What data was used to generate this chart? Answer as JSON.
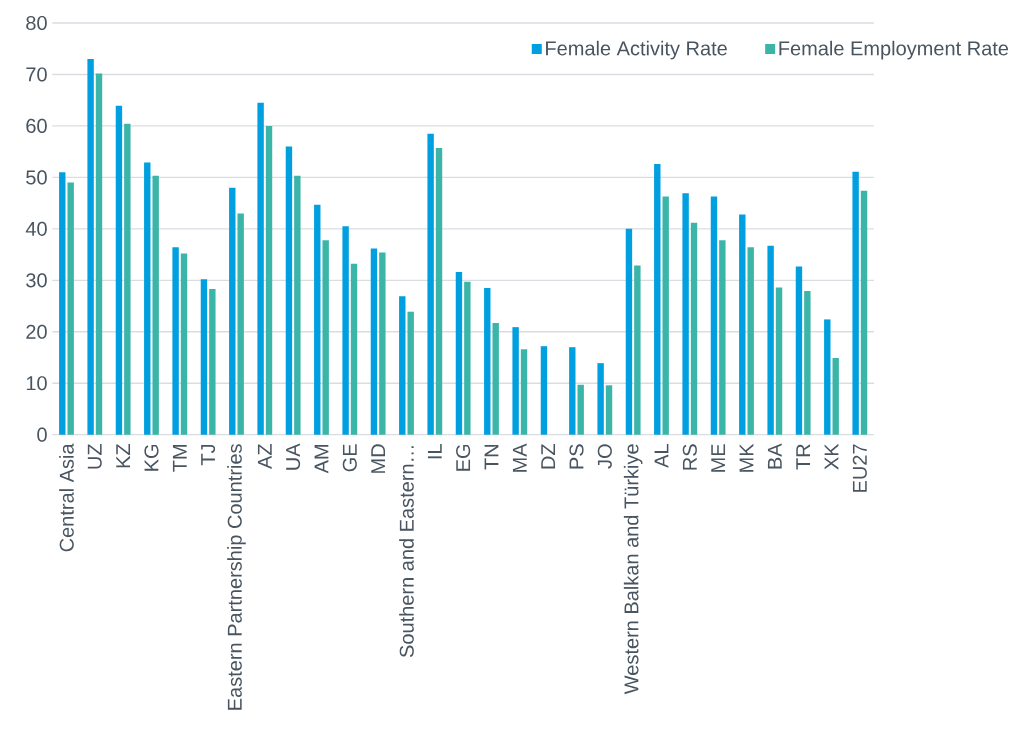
{
  "chart_data": {
    "type": "bar",
    "categories": [
      "Central Asia",
      "UZ",
      "KZ",
      "KG",
      "TM",
      "TJ",
      "Eastern Partnership Countries",
      "AZ",
      "UA",
      "AM",
      "GE",
      "MD",
      "Southern and Eastern…",
      "IL",
      "EG",
      "TN",
      "MA",
      "DZ",
      "PS",
      "JO",
      "Western Balkan and Türkiye",
      "AL",
      "RS",
      "ME",
      "MK",
      "BA",
      "TR",
      "XK",
      "EU27"
    ],
    "series": [
      {
        "name": "Female Activity Rate",
        "color": "#009fdf",
        "values": [
          51.0,
          73.0,
          63.9,
          52.9,
          36.4,
          30.2,
          48.0,
          64.5,
          56.0,
          44.7,
          40.5,
          36.2,
          26.9,
          58.5,
          31.6,
          28.5,
          20.9,
          17.2,
          17.0,
          13.9,
          40.0,
          52.6,
          46.9,
          46.3,
          42.8,
          36.7,
          32.7,
          22.4,
          51.1
        ]
      },
      {
        "name": "Female Employment Rate",
        "color": "#3cb5a9",
        "values": [
          49.0,
          70.2,
          60.4,
          50.3,
          35.2,
          28.3,
          43.0,
          60.0,
          50.3,
          37.8,
          33.2,
          35.4,
          23.9,
          55.7,
          29.7,
          21.7,
          16.6,
          null,
          9.7,
          9.6,
          32.9,
          46.3,
          41.2,
          37.8,
          36.4,
          28.6,
          27.9,
          14.9,
          47.4
        ]
      }
    ],
    "ylim": [
      0,
      80
    ],
    "yticks": [
      0,
      10,
      20,
      30,
      40,
      50,
      60,
      70,
      80
    ],
    "grid": "y",
    "legend": "top right"
  }
}
